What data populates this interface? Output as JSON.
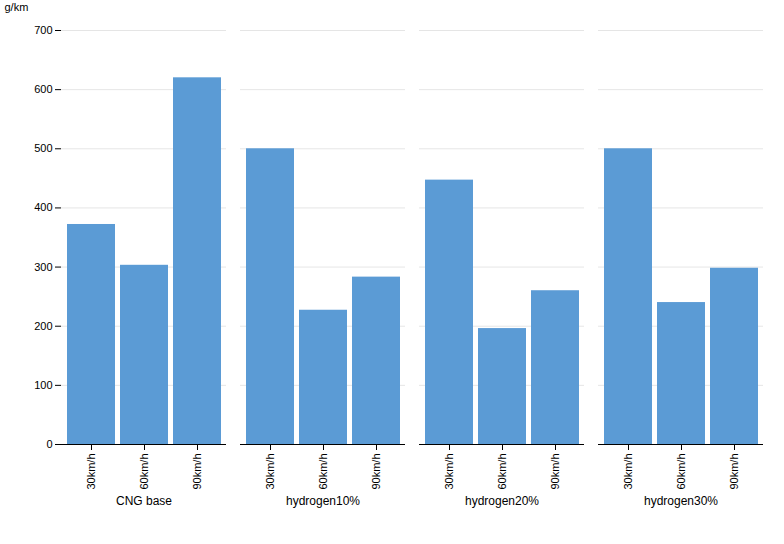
{
  "chart_data": {
    "type": "bar",
    "categories": [
      "CNG base",
      "hydrogen10%",
      "hydrogen20%",
      "hydrogen30%"
    ],
    "series": [
      {
        "name": "30km/h",
        "values": [
          372,
          500,
          447,
          500
        ]
      },
      {
        "name": "60km/h",
        "values": [
          303,
          227,
          196,
          240
        ]
      },
      {
        "name": "90km/h",
        "values": [
          620,
          283,
          260,
          298
        ]
      }
    ],
    "color": "#5b9bd5",
    "ylabel": "g/km",
    "ylim": [
      0,
      700
    ],
    "yticks": [
      0,
      100,
      200,
      300,
      400,
      500,
      600,
      700
    ],
    "grid": true
  }
}
